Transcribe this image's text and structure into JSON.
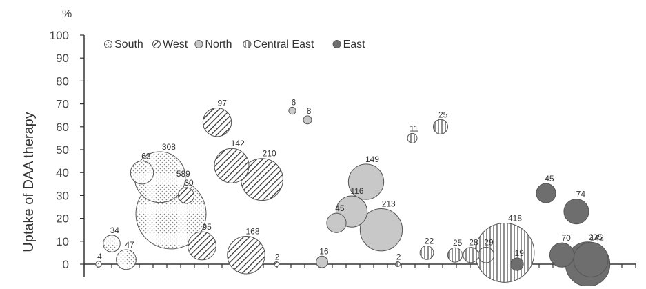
{
  "chart_data": {
    "type": "scatter",
    "title": "",
    "xlabel": "",
    "ylabel": "Uptake of DAA therapy",
    "unit_label": "%",
    "ylim": [
      0,
      100
    ],
    "yticks": [
      "0",
      "10",
      "20",
      "30",
      "40",
      "50",
      "60",
      "70",
      "80",
      "90",
      "100"
    ],
    "x_tick_count": 41,
    "grid": false,
    "legend_position": "top-left",
    "size_encoding": "bubble area proportional to count label",
    "series": [
      {
        "name": "South",
        "pattern": "dots",
        "points": [
          {
            "x": 1,
            "y": 0,
            "size": 4,
            "label": "4"
          },
          {
            "x": 2,
            "y": 9,
            "size": 34,
            "label": "34"
          },
          {
            "x": 3,
            "y": 2,
            "size": 47,
            "label": "47"
          },
          {
            "x": 4,
            "y": 40,
            "size": 63,
            "label": "63"
          },
          {
            "x": 5,
            "y": 38,
            "size": 308,
            "label": "308"
          },
          {
            "x": 6,
            "y": 22,
            "size": 589,
            "label": "589"
          }
        ]
      },
      {
        "name": "West",
        "pattern": "diagonal",
        "points": [
          {
            "x": 7,
            "y": 30,
            "size": 30,
            "label": "30"
          },
          {
            "x": 8,
            "y": 8,
            "size": 95,
            "label": "95"
          },
          {
            "x": 9,
            "y": 62,
            "size": 97,
            "label": "97"
          },
          {
            "x": 10,
            "y": 43,
            "size": 142,
            "label": "142"
          },
          {
            "x": 11,
            "y": 4,
            "size": 168,
            "label": "168"
          },
          {
            "x": 12,
            "y": 37,
            "size": 210,
            "label": "210"
          },
          {
            "x": 13,
            "y": 0,
            "size": 2,
            "label": "2"
          }
        ]
      },
      {
        "name": "North",
        "pattern": "solid-light",
        "points": [
          {
            "x": 14,
            "y": 67,
            "size": 6,
            "label": "6"
          },
          {
            "x": 15,
            "y": 63,
            "size": 8,
            "label": "8"
          },
          {
            "x": 16,
            "y": 1,
            "size": 16,
            "label": "16"
          },
          {
            "x": 17,
            "y": 18,
            "size": 45,
            "label": "45"
          },
          {
            "x": 18,
            "y": 23,
            "size": 116,
            "label": "116"
          },
          {
            "x": 19,
            "y": 36,
            "size": 149,
            "label": "149"
          },
          {
            "x": 20,
            "y": 15,
            "size": 213,
            "label": "213"
          }
        ]
      },
      {
        "name": "Central East",
        "pattern": "vertical",
        "points": [
          {
            "x": 21,
            "y": 0,
            "size": 2,
            "label": "2"
          },
          {
            "x": 22,
            "y": 55,
            "size": 11,
            "label": "11"
          },
          {
            "x": 23,
            "y": 5,
            "size": 22,
            "label": "22"
          },
          {
            "x": 24,
            "y": 60,
            "size": 25,
            "label": "25"
          },
          {
            "x": 25,
            "y": 4,
            "size": 25,
            "label": "25"
          },
          {
            "x": 26,
            "y": 4,
            "size": 28,
            "label": "28"
          },
          {
            "x": 27,
            "y": 4,
            "size": 29,
            "label": "29"
          },
          {
            "x": 28,
            "y": 5,
            "size": 418,
            "label": "418"
          }
        ]
      },
      {
        "name": "East",
        "pattern": "solid-dark",
        "points": [
          {
            "x": 29,
            "y": 0,
            "size": 19,
            "label": "19"
          },
          {
            "x": 30,
            "y": 31,
            "size": 45,
            "label": "45"
          },
          {
            "x": 31,
            "y": 4,
            "size": 70,
            "label": "70"
          },
          {
            "x": 32,
            "y": 23,
            "size": 74,
            "label": "74"
          },
          {
            "x": 33,
            "y": 2,
            "size": 142,
            "label": "142"
          },
          {
            "x": 34,
            "y": 0,
            "size": 235,
            "label": "235"
          }
        ]
      }
    ],
    "colors": {
      "axis": "#333333",
      "north_fill": "#c8c8c8",
      "east_fill": "#6e6e6e",
      "outline": "#555555"
    }
  }
}
